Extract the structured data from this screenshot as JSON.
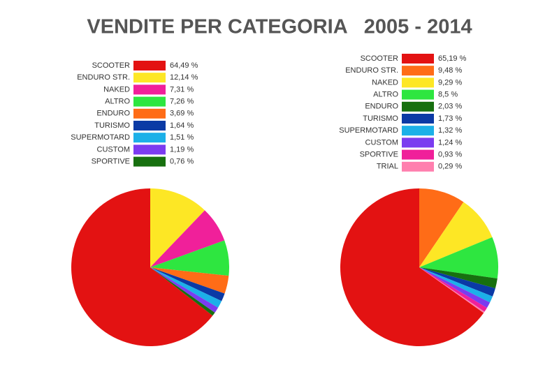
{
  "title": "VENDITE PER CATEGORIA   2005 - 2014",
  "chart_data": [
    {
      "type": "pie",
      "categories": [
        "SCOOTER",
        "ENDURO STR.",
        "NAKED",
        "ALTRO",
        "ENDURO",
        "TURISMO",
        "SUPERMOTARD",
        "CUSTOM",
        "SPORTIVE"
      ],
      "values": [
        64.49,
        12.14,
        7.31,
        7.26,
        3.69,
        1.64,
        1.51,
        1.19,
        0.76
      ],
      "value_labels": [
        "64,49 %",
        "12,14 %",
        "7,31 %",
        "7,26 %",
        "3,69 %",
        "1,64 %",
        "1,51 %",
        "1,19 %",
        "0,76 %"
      ],
      "colors": [
        "#e31212",
        "#fde725",
        "#f0209a",
        "#2ee640",
        "#ff6c17",
        "#0b3aa5",
        "#1cb0e8",
        "#7b3cf0",
        "#17700f"
      ]
    },
    {
      "type": "pie",
      "categories": [
        "SCOOTER",
        "ENDURO STR.",
        "NAKED",
        "ALTRO",
        "ENDURO",
        "TURISMO",
        "SUPERMOTARD",
        "CUSTOM",
        "SPORTIVE",
        "TRIAL"
      ],
      "values": [
        65.19,
        9.48,
        9.29,
        8.5,
        2.03,
        1.73,
        1.32,
        1.24,
        0.93,
        0.29
      ],
      "value_labels": [
        "65,19 %",
        "9,48 %",
        "9,29 %",
        "8,5 %",
        "2,03 %",
        "1,73 %",
        "1,32 %",
        "1,24 %",
        "0,93 %",
        "0,29 %"
      ],
      "colors": [
        "#e31212",
        "#ff6c17",
        "#fde725",
        "#2ee640",
        "#17700f",
        "#0b3aa5",
        "#1cb0e8",
        "#7b3cf0",
        "#f0209a",
        "#ff7fae"
      ]
    }
  ]
}
